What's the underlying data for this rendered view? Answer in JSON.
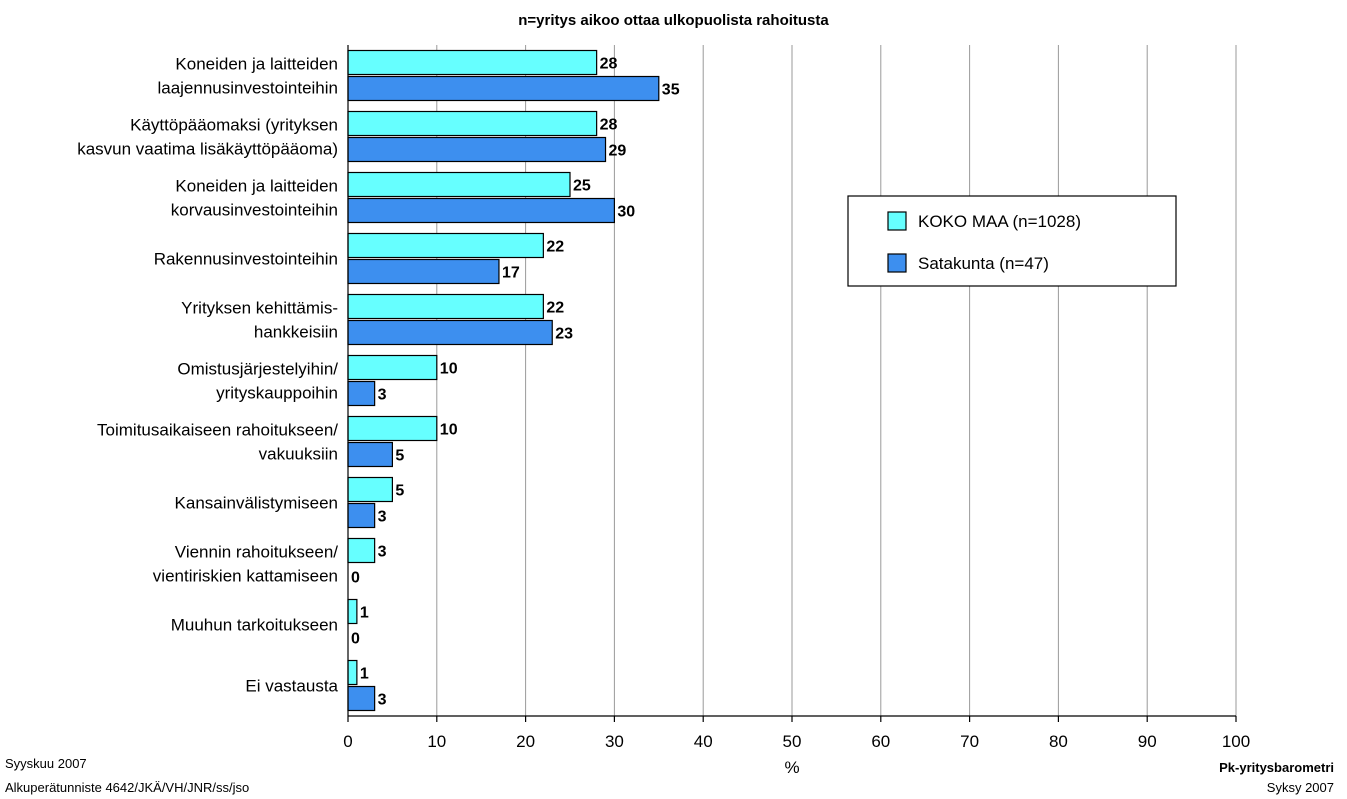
{
  "chart_data": {
    "type": "bar",
    "orientation": "horizontal",
    "subtitle": "n=yritys aikoo ottaa ulkopuolista rahoitusta",
    "categories": [
      [
        "Koneiden ja laitteiden",
        "laajennusinvestointeihin"
      ],
      [
        "Käyttöpääomaksi (yrityksen",
        "kasvun vaatima lisäkäyttöpääoma)"
      ],
      [
        "Koneiden ja laitteiden",
        "korvausinvestointeihin"
      ],
      [
        "Rakennusinvestointeihin"
      ],
      [
        "Yrityksen kehittämis-",
        "hankkeisiin"
      ],
      [
        "Omistusjärjestelyihin/",
        "yrityskauppoihin"
      ],
      [
        "Toimitusaikaiseen rahoitukseen/",
        "vakuuksiin"
      ],
      [
        "Kansainvälistymiseen"
      ],
      [
        "Viennin rahoitukseen/",
        "vientiriskien kattamiseen"
      ],
      [
        "Muuhun tarkoitukseen"
      ],
      [
        "Ei vastausta"
      ]
    ],
    "series": [
      {
        "name": "KOKO MAA (n=1028)",
        "color": "#66ffff",
        "values": [
          28,
          28,
          25,
          22,
          22,
          10,
          10,
          5,
          3,
          1,
          1
        ]
      },
      {
        "name": "Satakunta (n=47)",
        "color": "#3d8fef",
        "values": [
          35,
          29,
          30,
          17,
          23,
          3,
          5,
          3,
          0,
          0,
          3
        ]
      }
    ],
    "xlim": [
      0,
      100
    ],
    "xticks": [
      0,
      10,
      20,
      30,
      40,
      50,
      60,
      70,
      80,
      90,
      100
    ],
    "xlabel": "%",
    "grid": true,
    "legend_position": "right"
  },
  "footer": {
    "left_line1": "Syyskuu 2007",
    "left_line2": "Alkuperätunniste 4642/JKÄ/VH/JNR/ss/jso",
    "right_line1": "Pk-yritysbarometri",
    "right_line2": "Syksy 2007"
  }
}
